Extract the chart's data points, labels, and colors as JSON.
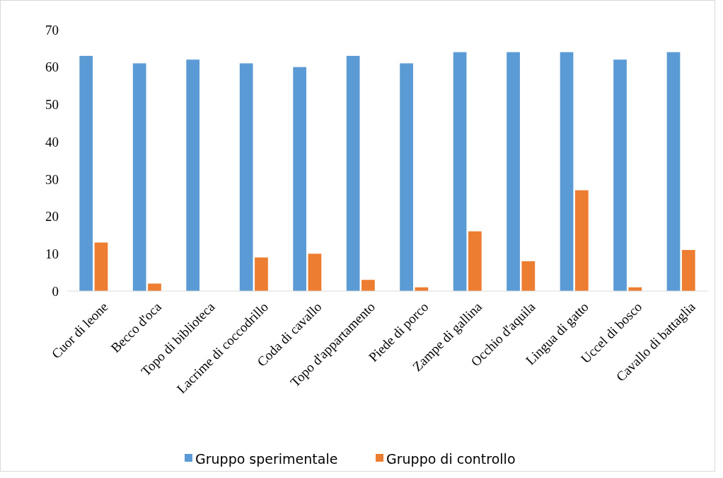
{
  "chart_data": {
    "type": "bar",
    "categories": [
      "Cuor di leone",
      "Becco d'oca",
      "Topo di biblioteca",
      "Lacrime di coccodrillo",
      "Coda di cavallo",
      "Topo d'appartamento",
      "Piede di porco",
      "Zampe di gallina",
      "Occhio d'aquila",
      "Lingua di gatto",
      "Uccel di bosco",
      "Cavallo di battaglia"
    ],
    "series": [
      {
        "name": "Gruppo sperimentale",
        "color": "#5b9bd5",
        "values": [
          63,
          61,
          62,
          61,
          60,
          63,
          61,
          64,
          64,
          64,
          62,
          64
        ]
      },
      {
        "name": "Gruppo di controllo",
        "color": "#ed7d31",
        "values": [
          13,
          2,
          0,
          9,
          10,
          3,
          1,
          16,
          8,
          27,
          1,
          11
        ]
      }
    ],
    "ylim": [
      0,
      70
    ],
    "yticks": [
      0,
      10,
      20,
      30,
      40,
      50,
      60,
      70
    ],
    "grid": false,
    "legend": "bottom"
  }
}
